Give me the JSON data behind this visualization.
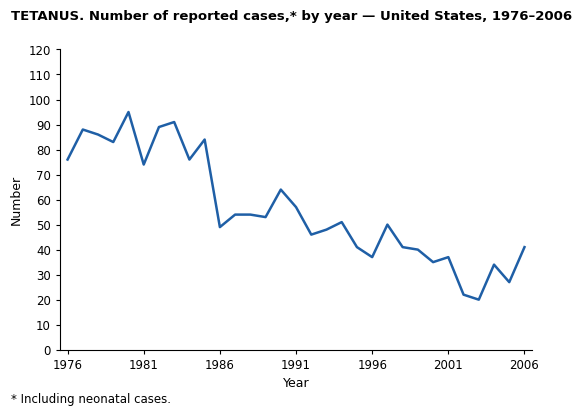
{
  "title": "TETANUS. Number of reported cases,* by year — United States, 1976–2006",
  "xlabel": "Year",
  "ylabel": "Number",
  "footnote": "* Including neonatal cases.",
  "line_color": "#1f5fa6",
  "line_width": 1.8,
  "years": [
    1976,
    1977,
    1978,
    1979,
    1980,
    1981,
    1982,
    1983,
    1984,
    1985,
    1986,
    1987,
    1988,
    1989,
    1990,
    1991,
    1992,
    1993,
    1994,
    1995,
    1996,
    1997,
    1998,
    1999,
    2000,
    2001,
    2002,
    2003,
    2004,
    2005,
    2006
  ],
  "values": [
    76,
    88,
    86,
    83,
    95,
    74,
    89,
    91,
    76,
    84,
    49,
    54,
    54,
    53,
    64,
    57,
    46,
    48,
    51,
    41,
    37,
    50,
    41,
    40,
    35,
    37,
    22,
    20,
    34,
    27,
    41
  ],
  "xlim": [
    1975.5,
    2006.5
  ],
  "ylim": [
    0,
    120
  ],
  "yticks": [
    0,
    10,
    20,
    30,
    40,
    50,
    60,
    70,
    80,
    90,
    100,
    110,
    120
  ],
  "xticks": [
    1976,
    1981,
    1986,
    1991,
    1996,
    2001,
    2006
  ],
  "background_color": "#ffffff",
  "title_fontsize": 9.5,
  "axis_label_fontsize": 9,
  "tick_fontsize": 8.5,
  "footnote_fontsize": 8.5
}
